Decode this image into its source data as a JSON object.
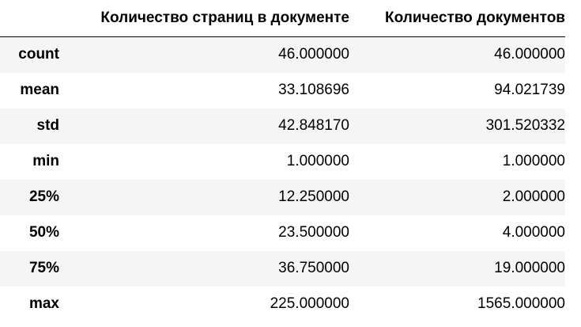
{
  "table": {
    "columns": [
      "",
      "Количество страниц в документе",
      "Количество документов"
    ],
    "rows": [
      {
        "label": "count",
        "pages": "46.000000",
        "docs": "46.000000"
      },
      {
        "label": "mean",
        "pages": "33.108696",
        "docs": "94.021739"
      },
      {
        "label": "std",
        "pages": "42.848170",
        "docs": "301.520332"
      },
      {
        "label": "min",
        "pages": "1.000000",
        "docs": "1.000000"
      },
      {
        "label": "25%",
        "pages": "12.250000",
        "docs": "2.000000"
      },
      {
        "label": "50%",
        "pages": "23.500000",
        "docs": "4.000000"
      },
      {
        "label": "75%",
        "pages": "36.750000",
        "docs": "19.000000"
      },
      {
        "label": "max",
        "pages": "225.000000",
        "docs": "1565.000000"
      }
    ]
  }
}
